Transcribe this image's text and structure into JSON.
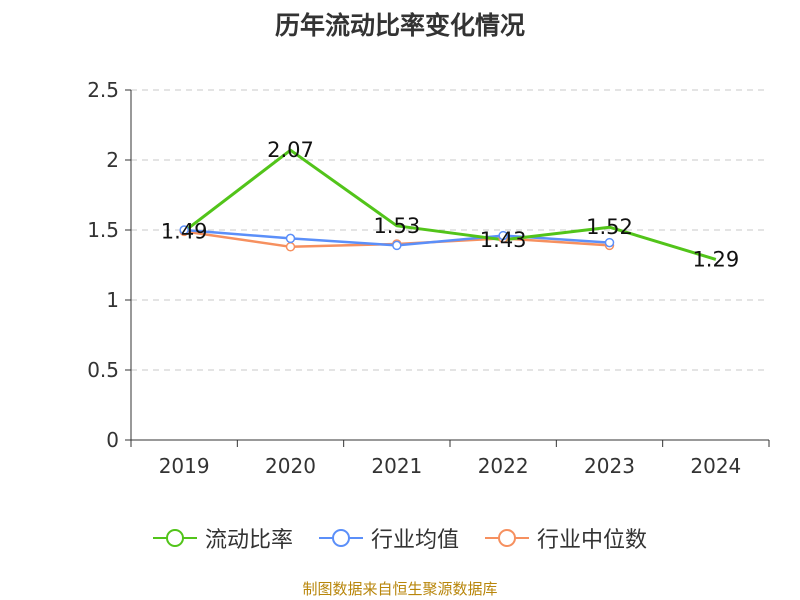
{
  "title": "历年流动比率变化情况",
  "source": "制图数据来自恒生聚源数据库",
  "chart_data": {
    "type": "line",
    "title": "历年流动比率变化情况",
    "categories": [
      "2019",
      "2020",
      "2021",
      "2022",
      "2023",
      "2024"
    ],
    "ylim": [
      0,
      2.5
    ],
    "yticks": [
      "0",
      "0.5",
      "1",
      "1.5",
      "2",
      "2.5"
    ],
    "grid": true,
    "legend_position": "bottom",
    "series": [
      {
        "name": "流动比率",
        "color": "#52c41a",
        "values": [
          1.49,
          2.07,
          1.53,
          1.43,
          1.52,
          1.29
        ],
        "labels": [
          "1.49",
          "2.07",
          "1.53",
          "1.43",
          "1.52",
          "1.29"
        ]
      },
      {
        "name": "行业均值",
        "color": "#5b8ff9",
        "values": [
          1.5,
          1.44,
          1.39,
          1.46,
          1.41,
          null
        ]
      },
      {
        "name": "行业中位数",
        "color": "#f6905f",
        "values": [
          1.49,
          1.38,
          1.4,
          1.44,
          1.39,
          null
        ]
      }
    ]
  }
}
